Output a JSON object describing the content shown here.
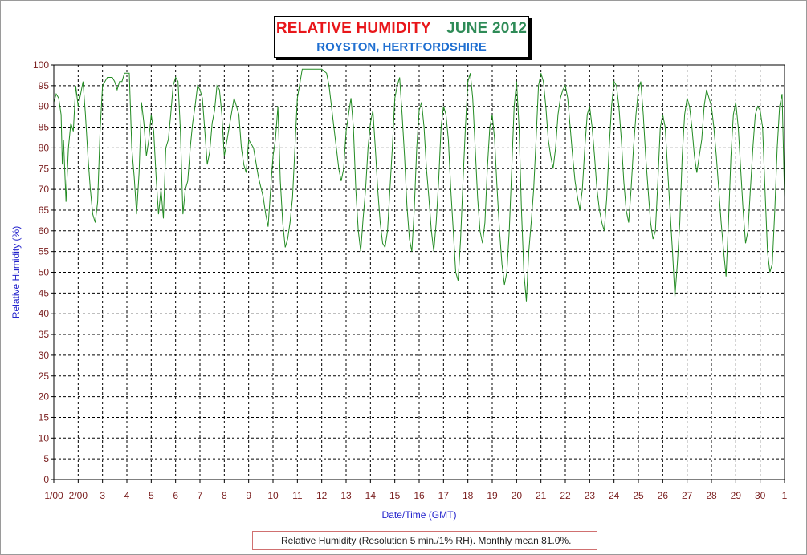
{
  "title": {
    "main": "RELATIVE HUMIDITY",
    "month": "JUNE 2012",
    "location": "ROYSTON, HERTFORDSHIRE"
  },
  "legend": {
    "label": "Relative Humidity (Resolution 5 min./1% RH). Monthly mean 81.0%."
  },
  "colors": {
    "title_main": "#e8161a",
    "title_month": "#2e8b57",
    "location": "#1f6fd1",
    "series": "#228b22",
    "tick_labels": "#7a1f1f",
    "axis_labels": "#2222cc"
  },
  "chart_data": {
    "type": "line",
    "xlabel": "Date/Time (GMT)",
    "ylabel": "Relative Humidity (%)",
    "ylim": [
      0,
      100
    ],
    "xlim": [
      1,
      31
    ],
    "yticks": [
      0,
      5,
      10,
      15,
      20,
      25,
      30,
      35,
      40,
      45,
      50,
      55,
      60,
      65,
      70,
      75,
      80,
      85,
      90,
      95,
      100
    ],
    "xticks": [
      {
        "x": 1,
        "label": "1/00"
      },
      {
        "x": 2,
        "label": "2/00"
      },
      {
        "x": 3,
        "label": "3"
      },
      {
        "x": 4,
        "label": "4"
      },
      {
        "x": 5,
        "label": "5"
      },
      {
        "x": 6,
        "label": "6"
      },
      {
        "x": 7,
        "label": "7"
      },
      {
        "x": 8,
        "label": "8"
      },
      {
        "x": 9,
        "label": "9"
      },
      {
        "x": 10,
        "label": "10"
      },
      {
        "x": 11,
        "label": "11"
      },
      {
        "x": 12,
        "label": "12"
      },
      {
        "x": 13,
        "label": "13"
      },
      {
        "x": 14,
        "label": "14"
      },
      {
        "x": 15,
        "label": "15"
      },
      {
        "x": 16,
        "label": "16"
      },
      {
        "x": 17,
        "label": "17"
      },
      {
        "x": 18,
        "label": "18"
      },
      {
        "x": 19,
        "label": "19"
      },
      {
        "x": 20,
        "label": "20"
      },
      {
        "x": 21,
        "label": "21"
      },
      {
        "x": 22,
        "label": "22"
      },
      {
        "x": 23,
        "label": "23"
      },
      {
        "x": 24,
        "label": "24"
      },
      {
        "x": 25,
        "label": "25"
      },
      {
        "x": 26,
        "label": "26"
      },
      {
        "x": 27,
        "label": "27"
      },
      {
        "x": 28,
        "label": "28"
      },
      {
        "x": 29,
        "label": "29"
      },
      {
        "x": 30,
        "label": "30"
      },
      {
        "x": 31,
        "label": "1"
      }
    ],
    "grid": true,
    "legend_position": "bottom-center",
    "series": [
      {
        "name": "Relative Humidity (Resolution 5 min./1% RH). Monthly mean 81.0%.",
        "x": [
          1.0,
          1.1,
          1.2,
          1.3,
          1.35,
          1.4,
          1.5,
          1.6,
          1.7,
          1.8,
          1.9,
          2.0,
          2.1,
          2.2,
          2.3,
          2.4,
          2.5,
          2.6,
          2.7,
          2.8,
          2.9,
          3.0,
          3.2,
          3.4,
          3.5,
          3.6,
          3.7,
          3.8,
          3.9,
          4.0,
          4.1,
          4.2,
          4.3,
          4.4,
          4.5,
          4.6,
          4.7,
          4.8,
          4.9,
          5.0,
          5.1,
          5.2,
          5.3,
          5.4,
          5.5,
          5.6,
          5.7,
          5.8,
          5.9,
          6.0,
          6.1,
          6.2,
          6.3,
          6.4,
          6.5,
          6.6,
          6.7,
          6.8,
          6.9,
          7.0,
          7.1,
          7.2,
          7.3,
          7.4,
          7.5,
          7.6,
          7.7,
          7.8,
          7.9,
          8.0,
          8.2,
          8.4,
          8.6,
          8.7,
          8.8,
          8.9,
          9.0,
          9.2,
          9.4,
          9.6,
          9.7,
          9.8,
          9.9,
          10.0,
          10.1,
          10.2,
          10.3,
          10.4,
          10.5,
          10.6,
          10.7,
          10.8,
          10.9,
          11.0,
          11.2,
          11.4,
          11.6,
          11.8,
          12.0,
          12.2,
          12.3,
          12.4,
          12.5,
          12.6,
          12.7,
          12.8,
          12.9,
          13.0,
          13.1,
          13.2,
          13.3,
          13.4,
          13.5,
          13.6,
          13.7,
          13.8,
          13.9,
          14.0,
          14.1,
          14.2,
          14.3,
          14.4,
          14.5,
          14.6,
          14.7,
          14.8,
          14.9,
          15.0,
          15.1,
          15.2,
          15.3,
          15.4,
          15.5,
          15.6,
          15.7,
          15.8,
          15.9,
          16.0,
          16.1,
          16.2,
          16.3,
          16.4,
          16.5,
          16.6,
          16.7,
          16.8,
          16.9,
          17.0,
          17.1,
          17.2,
          17.3,
          17.4,
          17.5,
          17.6,
          17.7,
          17.8,
          17.9,
          18.0,
          18.1,
          18.2,
          18.3,
          18.4,
          18.5,
          18.6,
          18.7,
          18.8,
          18.9,
          19.0,
          19.1,
          19.2,
          19.3,
          19.4,
          19.5,
          19.6,
          19.7,
          19.8,
          19.9,
          20.0,
          20.1,
          20.2,
          20.3,
          20.4,
          20.5,
          20.6,
          20.7,
          20.8,
          20.9,
          21.0,
          21.1,
          21.2,
          21.3,
          21.4,
          21.5,
          21.6,
          21.7,
          21.8,
          21.9,
          22.0,
          22.1,
          22.2,
          22.3,
          22.4,
          22.5,
          22.6,
          22.7,
          22.8,
          22.9,
          23.0,
          23.1,
          23.2,
          23.3,
          23.4,
          23.5,
          23.6,
          23.7,
          23.8,
          23.9,
          24.0,
          24.1,
          24.2,
          24.3,
          24.4,
          24.5,
          24.6,
          24.7,
          24.8,
          24.9,
          25.0,
          25.1,
          25.2,
          25.3,
          25.4,
          25.5,
          25.6,
          25.7,
          25.8,
          25.9,
          26.0,
          26.1,
          26.2,
          26.3,
          26.4,
          26.5,
          26.6,
          26.7,
          26.8,
          26.9,
          27.0,
          27.1,
          27.2,
          27.3,
          27.4,
          27.5,
          27.6,
          27.7,
          27.8,
          27.9,
          28.0,
          28.1,
          28.2,
          28.3,
          28.4,
          28.5,
          28.6,
          28.7,
          28.8,
          28.9,
          29.0,
          29.1,
          29.2,
          29.3,
          29.4,
          29.5,
          29.6,
          29.7,
          29.8,
          29.9,
          30.0,
          30.1,
          30.2,
          30.3,
          30.4,
          30.5,
          30.6,
          30.7,
          30.8,
          30.9,
          31.0
        ],
        "y": [
          91,
          93,
          92,
          88,
          76,
          82,
          67,
          80,
          86,
          84,
          95,
          90,
          93,
          96,
          88,
          78,
          70,
          64,
          62,
          67,
          84,
          95,
          97,
          97,
          96,
          94,
          96,
          96,
          98,
          98,
          98,
          80,
          73,
          64,
          74,
          91,
          86,
          78,
          82,
          88,
          84,
          73,
          64,
          70,
          63,
          80,
          82,
          88,
          95,
          97,
          96,
          84,
          64,
          70,
          72,
          80,
          86,
          90,
          95,
          94,
          92,
          84,
          76,
          79,
          86,
          89,
          95,
          94,
          88,
          78,
          85,
          92,
          88,
          80,
          76,
          74,
          82,
          80,
          73,
          68,
          64,
          61,
          70,
          78,
          82,
          90,
          72,
          62,
          56,
          58,
          62,
          68,
          80,
          92,
          99,
          99,
          99,
          99,
          99,
          98,
          95,
          90,
          85,
          80,
          75,
          72,
          75,
          84,
          88,
          92,
          85,
          70,
          60,
          55,
          63,
          70,
          80,
          86,
          89,
          80,
          70,
          62,
          57,
          56,
          60,
          70,
          80,
          92,
          95,
          97,
          88,
          78,
          66,
          58,
          55,
          65,
          80,
          89,
          91,
          85,
          75,
          68,
          60,
          55,
          62,
          72,
          85,
          90,
          88,
          82,
          70,
          60,
          50,
          48,
          58,
          72,
          85,
          96,
          98,
          92,
          80,
          68,
          60,
          57,
          62,
          75,
          85,
          88,
          82,
          70,
          60,
          52,
          47,
          50,
          60,
          75,
          90,
          96,
          85,
          65,
          50,
          43,
          55,
          62,
          70,
          82,
          95,
          98,
          96,
          90,
          82,
          78,
          75,
          80,
          88,
          92,
          94,
          95,
          92,
          85,
          78,
          72,
          68,
          65,
          70,
          80,
          88,
          90,
          85,
          78,
          70,
          65,
          62,
          60,
          68,
          80,
          90,
          96,
          95,
          90,
          82,
          72,
          65,
          62,
          70,
          80,
          88,
          94,
          96,
          88,
          78,
          70,
          62,
          58,
          60,
          72,
          85,
          88,
          85,
          75,
          65,
          55,
          44,
          52,
          62,
          78,
          88,
          92,
          90,
          85,
          78,
          74,
          78,
          82,
          90,
          94,
          92,
          90,
          85,
          78,
          70,
          62,
          55,
          49,
          62,
          78,
          88,
          91,
          85,
          75,
          65,
          57,
          60,
          70,
          80,
          88,
          90,
          89,
          85,
          70,
          55,
          50,
          52,
          65,
          80,
          90,
          93,
          68
        ]
      }
    ]
  }
}
